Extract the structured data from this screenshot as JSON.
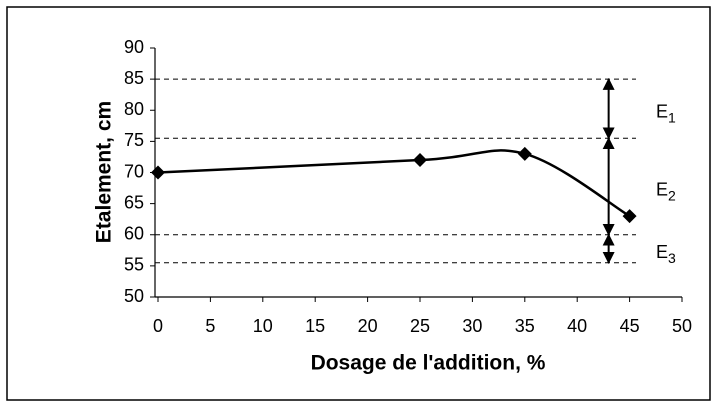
{
  "chart_data": {
    "type": "line",
    "x_label": "Dosage de l'addition, %",
    "y_label": "Etalement, cm",
    "x": [
      0,
      25,
      35,
      45
    ],
    "values": [
      70,
      72,
      73,
      63
    ],
    "color": "#000000",
    "xlim": [
      0,
      50
    ],
    "xticks": [
      0,
      5,
      10,
      15,
      20,
      25,
      30,
      35,
      40,
      45,
      50
    ],
    "ylim": [
      50,
      90
    ],
    "yticks": [
      50,
      55,
      60,
      65,
      70,
      75,
      80,
      85,
      90
    ],
    "grid": false,
    "reference_lines": [
      85,
      75.5,
      60,
      55.5
    ],
    "annotations": [
      {
        "label": "E",
        "sub": "1",
        "from": 85,
        "to": 75.5
      },
      {
        "label": "E",
        "sub": "2",
        "from": 75.5,
        "to": 60
      },
      {
        "label": "E",
        "sub": "3",
        "from": 60,
        "to": 55.5
      }
    ]
  }
}
